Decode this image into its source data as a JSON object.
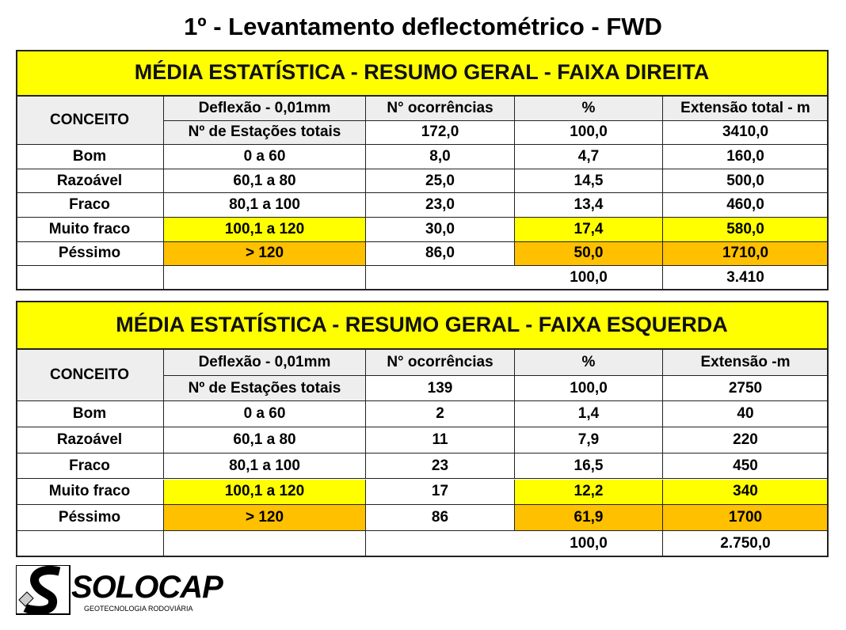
{
  "title": "1º - Levantamento deflectométrico - FWD",
  "tables": [
    {
      "title": "MÉDIA ESTATÍSTICA - RESUMO GERAL - FAIXA DIREITA",
      "concept_label": "CONCEITO",
      "columns": [
        "Deflexão - 0,01mm",
        "N° ocorrências",
        "%",
        "Extensão total - m"
      ],
      "totals": [
        "Nº de Estações totais",
        "172,0",
        "100,0",
        "3410,0"
      ],
      "rows": [
        [
          "Bom",
          "0 a 60",
          "8,0",
          "4,7",
          "160,0"
        ],
        [
          "Razoável",
          "60,1 a 80",
          "25,0",
          "14,5",
          "500,0"
        ],
        [
          "Fraco",
          "80,1 a 100",
          "23,0",
          "13,4",
          "460,0"
        ],
        [
          "Muito fraco",
          "100,1 a 120",
          "30,0",
          "17,4",
          "580,0"
        ],
        [
          "Péssimo",
          "> 120",
          "86,0",
          "50,0",
          "1710,0"
        ]
      ],
      "summary": [
        "100,0",
        "3.410"
      ]
    },
    {
      "title": "MÉDIA ESTATÍSTICA - RESUMO GERAL - FAIXA ESQUERDA",
      "concept_label": "CONCEITO",
      "columns": [
        "Deflexão - 0,01mm",
        "N° ocorrências",
        "%",
        "Extensão -m"
      ],
      "totals": [
        "Nº de Estações totais",
        "139",
        "100,0",
        "2750"
      ],
      "rows": [
        [
          "Bom",
          "0 a 60",
          "2",
          "1,4",
          "40"
        ],
        [
          "Razoável",
          "60,1 a 80",
          "11",
          "7,9",
          "220"
        ],
        [
          "Fraco",
          "80,1 a 100",
          "23",
          "16,5",
          "450"
        ],
        [
          "Muito fraco",
          "100,1 a 120",
          "17",
          "12,2",
          "340"
        ],
        [
          "Péssimo",
          "> 120",
          "86",
          "61,9",
          "1700"
        ]
      ],
      "summary": [
        "100,0",
        "2.750,0"
      ]
    }
  ],
  "logo": {
    "name": "SOLOCAP",
    "tagline": "GEOTECNOLOGIA RODOVIÁRIA"
  }
}
